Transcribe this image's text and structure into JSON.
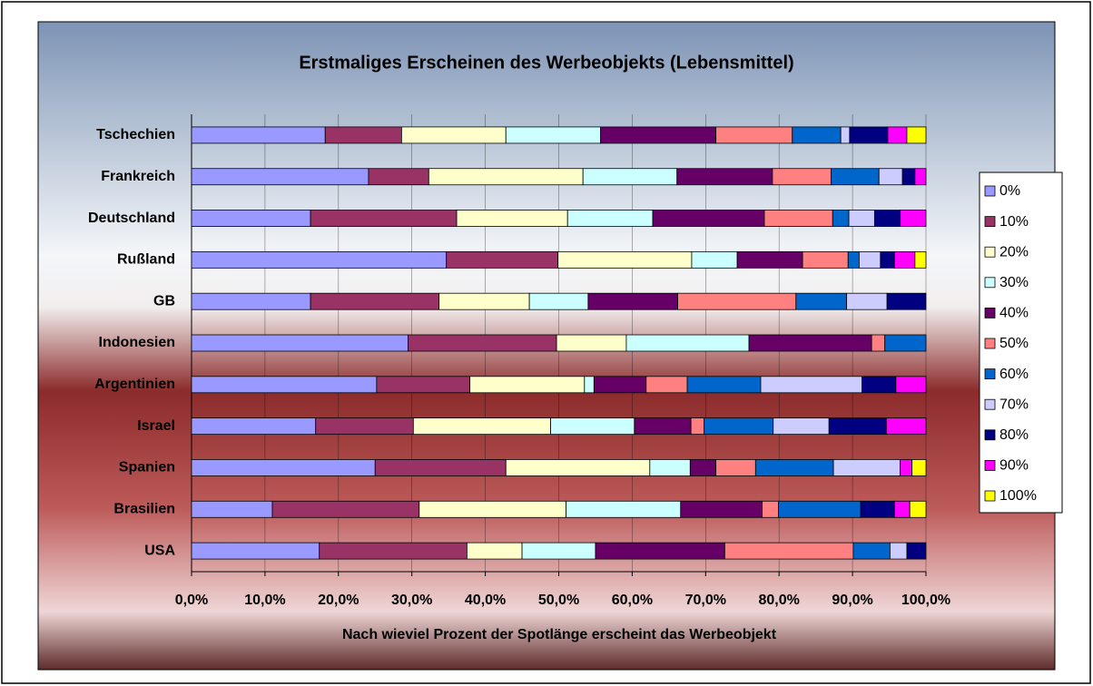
{
  "chart_data": {
    "type": "bar",
    "orientation": "horizontal",
    "stacked": true,
    "title": "Erstmaliges Erscheinen des Werbeobjekts (Lebensmittel)",
    "x_label": "Nach wieviel Prozent der Spotlänge erscheint das Werbeobjekt",
    "categories": [
      "Tschechien",
      "Frankreich",
      "Deutschland",
      "Rußland",
      "GB",
      "Indonesien",
      "Argentinien",
      "Israel",
      "Spanien",
      "Brasilien",
      "USA"
    ],
    "series": [
      {
        "name": "0%",
        "color": "#9999ff",
        "values": [
          18.2,
          24.1,
          16.2,
          34.7,
          16.2,
          29.5,
          25.2,
          16.9,
          25.0,
          11.0,
          17.4
        ]
      },
      {
        "name": "10%",
        "color": "#993366",
        "values": [
          10.4,
          8.2,
          19.9,
          15.2,
          17.5,
          20.2,
          12.7,
          13.3,
          17.8,
          20.0,
          20.1
        ]
      },
      {
        "name": "20%",
        "color": "#ffffcc",
        "values": [
          14.2,
          21.0,
          15.1,
          18.2,
          12.3,
          9.5,
          15.6,
          18.7,
          19.6,
          20.0,
          7.5
        ]
      },
      {
        "name": "30%",
        "color": "#ccffff",
        "values": [
          12.9,
          12.8,
          11.6,
          6.2,
          8.0,
          16.7,
          1.3,
          11.4,
          5.5,
          15.6,
          10.0
        ]
      },
      {
        "name": "40%",
        "color": "#660066",
        "values": [
          15.7,
          13.0,
          15.2,
          8.9,
          12.2,
          16.7,
          7.1,
          7.7,
          3.5,
          11.1,
          17.6
        ]
      },
      {
        "name": "50%",
        "color": "#ff8080",
        "values": [
          10.4,
          8.0,
          9.3,
          6.2,
          16.1,
          1.8,
          5.6,
          1.8,
          5.4,
          2.2,
          17.5
        ]
      },
      {
        "name": "60%",
        "color": "#0066cc",
        "values": [
          6.6,
          6.5,
          2.2,
          1.5,
          6.9,
          5.6,
          10.0,
          9.4,
          10.6,
          11.2,
          5.0
        ]
      },
      {
        "name": "70%",
        "color": "#ccccff",
        "values": [
          1.2,
          3.2,
          3.5,
          2.9,
          5.5,
          0,
          13.8,
          7.6,
          9.1,
          0,
          2.3
        ]
      },
      {
        "name": "80%",
        "color": "#000080",
        "values": [
          5.2,
          1.7,
          3.5,
          1.9,
          5.3,
          0,
          4.6,
          7.8,
          0,
          4.6,
          2.6
        ]
      },
      {
        "name": "90%",
        "color": "#ff00ff",
        "values": [
          2.6,
          1.5,
          3.5,
          2.8,
          0,
          0,
          4.1,
          5.4,
          1.6,
          2.1,
          0
        ]
      },
      {
        "name": "100%",
        "color": "#ffff00",
        "values": [
          2.6,
          0,
          0,
          1.5,
          0,
          0,
          0,
          0,
          1.9,
          2.2,
          0
        ]
      }
    ],
    "xlim": [
      0,
      100
    ],
    "xticks": [
      {
        "value": 0,
        "label": "0,0%"
      },
      {
        "value": 10,
        "label": "10,0%"
      },
      {
        "value": 20,
        "label": "20,0%"
      },
      {
        "value": 30,
        "label": "30,0%"
      },
      {
        "value": 40,
        "label": "40,0%"
      },
      {
        "value": 50,
        "label": "50,0%"
      },
      {
        "value": 60,
        "label": "60,0%"
      },
      {
        "value": 70,
        "label": "70,0%"
      },
      {
        "value": 80,
        "label": "80,0%"
      },
      {
        "value": 90,
        "label": "90,0%"
      },
      {
        "value": 100,
        "label": "100,0%"
      }
    ],
    "grid": true,
    "legend": "right"
  }
}
